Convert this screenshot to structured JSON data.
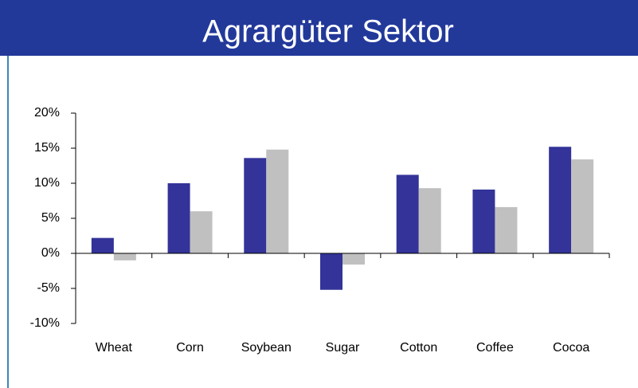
{
  "chart_data": {
    "type": "bar",
    "title": "Agrargüter Sektor",
    "categories": [
      "Wheat",
      "Corn",
      "Soybean",
      "Sugar",
      "Cotton",
      "Coffee",
      "Cocoa"
    ],
    "series": [
      {
        "color": "#333399",
        "values": [
          2.2,
          10,
          13.6,
          -5.2,
          11.2,
          9.1,
          15.2
        ]
      },
      {
        "color": "#c0c0c0",
        "values": [
          -1.0,
          6,
          14.8,
          -1.6,
          9.3,
          6.6,
          13.4
        ]
      }
    ],
    "ylim": [
      -10,
      20
    ],
    "yticks": [
      {
        "value": -10,
        "label": "-10%"
      },
      {
        "value": -5,
        "label": "-5%"
      },
      {
        "value": 0,
        "label": "0%"
      },
      {
        "value": 5,
        "label": "5%"
      },
      {
        "value": 10,
        "label": "10%"
      },
      {
        "value": 15,
        "label": "15%"
      },
      {
        "value": 20,
        "label": "20%"
      }
    ],
    "grid": false
  }
}
